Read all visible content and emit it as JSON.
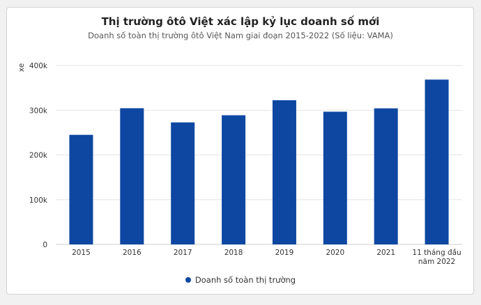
{
  "chart_data": {
    "type": "bar",
    "title": "Thị trường ôtô Việt xác lập kỷ lục doanh số mới",
    "subtitle": "Doanh số toàn thị trường ôtô Việt Nam giai đoạn 2015-2022 (Số liệu: VAMA)",
    "ylabel": "xe",
    "xlabel": "",
    "categories": [
      "2015",
      "2016",
      "2017",
      "2018",
      "2019",
      "2020",
      "2021",
      "11 tháng đầu năm 2022"
    ],
    "category_lines": [
      [
        "2015"
      ],
      [
        "2016"
      ],
      [
        "2017"
      ],
      [
        "2018"
      ],
      [
        "2019"
      ],
      [
        "2020"
      ],
      [
        "2021"
      ],
      [
        "11 tháng đầu",
        "năm 2022"
      ]
    ],
    "series": [
      {
        "name": "Doanh số toàn thị trường",
        "color": "#0d47a1",
        "values": [
          244914,
          304427,
          272750,
          288683,
          322322,
          296634,
          304149,
          368369
        ]
      }
    ],
    "ylim": [
      0,
      400000
    ],
    "yticks": [
      0,
      100000,
      200000,
      300000,
      400000
    ],
    "ytick_labels": [
      "0",
      "100k",
      "200k",
      "300k",
      "400k"
    ],
    "grid": true,
    "legend": "bottom-center"
  }
}
